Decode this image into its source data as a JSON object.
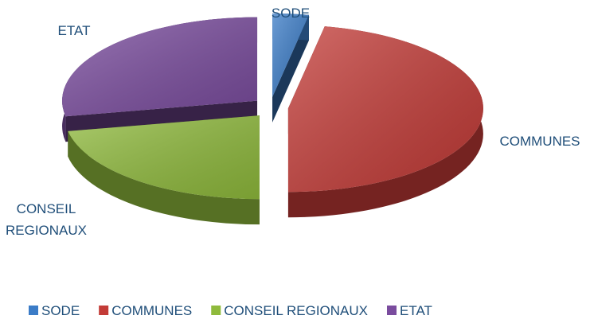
{
  "chart_data": {
    "type": "pie",
    "categories": [
      "SODE",
      "COMMUNES",
      "CONSEIL REGIONAUX",
      "ETAT"
    ],
    "values": [
      3,
      47,
      22,
      28
    ],
    "colors": [
      "#3b7cc7",
      "#c33b37",
      "#8fba3c",
      "#7a4c9e"
    ],
    "legend": "bottom"
  }
}
